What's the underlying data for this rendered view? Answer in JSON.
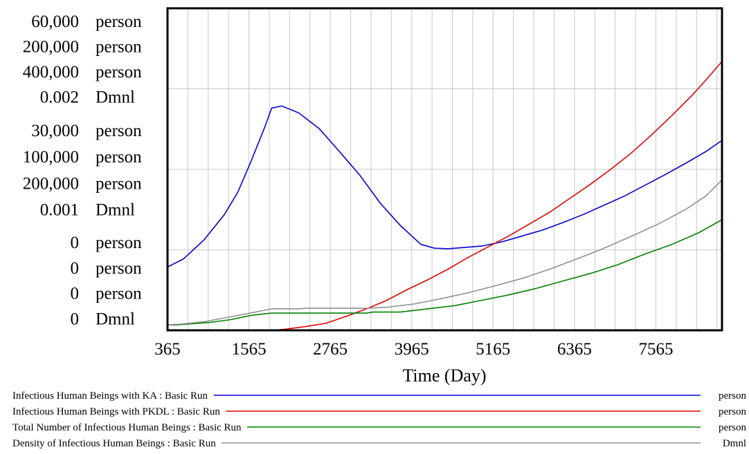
{
  "chart_data": {
    "type": "line",
    "xlabel": "Time (Day)",
    "xlim": [
      365,
      8540
    ],
    "xticks": [
      "365",
      "1565",
      "2765",
      "3965",
      "5165",
      "6365",
      "7565"
    ],
    "grid": true,
    "yaxis_groups": [
      [
        {
          "value": "60,000",
          "unit": "person"
        },
        {
          "value": "200,000",
          "unit": "person"
        },
        {
          "value": "400,000",
          "unit": "person"
        },
        {
          "value": "0.002",
          "unit": "Dmnl"
        }
      ],
      [
        {
          "value": "30,000",
          "unit": "person"
        },
        {
          "value": "100,000",
          "unit": "person"
        },
        {
          "value": "200,000",
          "unit": "person"
        },
        {
          "value": "0.001",
          "unit": "Dmnl"
        }
      ],
      [
        {
          "value": "0",
          "unit": "person"
        },
        {
          "value": "0",
          "unit": "person"
        },
        {
          "value": "0",
          "unit": "person"
        },
        {
          "value": "0",
          "unit": "Dmnl"
        }
      ]
    ],
    "series": [
      {
        "name": "Infectious Human Beings with KA : Basic Run",
        "unit": "person",
        "color": "#0000d0",
        "ymax": 60000,
        "points": [
          [
            365,
            11800
          ],
          [
            600,
            13300
          ],
          [
            900,
            16800
          ],
          [
            1200,
            21500
          ],
          [
            1400,
            25700
          ],
          [
            1600,
            31600
          ],
          [
            1800,
            37900
          ],
          [
            1900,
            41400
          ],
          [
            2050,
            41800
          ],
          [
            2300,
            40500
          ],
          [
            2600,
            37600
          ],
          [
            2900,
            33300
          ],
          [
            3200,
            28900
          ],
          [
            3500,
            23700
          ],
          [
            3800,
            19500
          ],
          [
            4100,
            16000
          ],
          [
            4300,
            15300
          ],
          [
            4500,
            15200
          ],
          [
            4700,
            15400
          ],
          [
            5000,
            15700
          ],
          [
            5300,
            16500
          ],
          [
            5600,
            17600
          ],
          [
            5900,
            18700
          ],
          [
            6200,
            20100
          ],
          [
            6500,
            21600
          ],
          [
            6800,
            23300
          ],
          [
            7100,
            25000
          ],
          [
            7400,
            27000
          ],
          [
            7700,
            29000
          ],
          [
            8000,
            31100
          ],
          [
            8300,
            33300
          ],
          [
            8540,
            35400
          ]
        ]
      },
      {
        "name": "Infectious Human Beings with PKDL : Basic Run",
        "unit": "person",
        "color": "#e00000",
        "ymax": 200000,
        "points": [
          [
            365,
            0
          ],
          [
            1900,
            0
          ],
          [
            2100,
            667
          ],
          [
            2400,
            2333
          ],
          [
            2700,
            4333
          ],
          [
            3000,
            8667
          ],
          [
            3300,
            13333
          ],
          [
            3600,
            18667
          ],
          [
            3900,
            25333
          ],
          [
            4200,
            31333
          ],
          [
            4500,
            38000
          ],
          [
            4800,
            45333
          ],
          [
            5100,
            52000
          ],
          [
            5400,
            58667
          ],
          [
            5700,
            66000
          ],
          [
            6000,
            73333
          ],
          [
            6300,
            82000
          ],
          [
            6600,
            90667
          ],
          [
            6900,
            100000
          ],
          [
            7200,
            110000
          ],
          [
            7500,
            121333
          ],
          [
            7800,
            133333
          ],
          [
            8100,
            146000
          ],
          [
            8300,
            155333
          ],
          [
            8540,
            167000
          ]
        ]
      },
      {
        "name": "Total Number of Infectious Human Beings : Basic Run",
        "unit": "person",
        "color": "#008000",
        "ymax": 400000,
        "points": [
          [
            365,
            6667
          ],
          [
            500,
            6667
          ],
          [
            700,
            8000
          ],
          [
            1000,
            10000
          ],
          [
            1300,
            13333
          ],
          [
            1600,
            18667
          ],
          [
            1900,
            21333
          ],
          [
            2000,
            21333
          ],
          [
            3300,
            21333
          ],
          [
            3400,
            22667
          ],
          [
            3800,
            22667
          ],
          [
            4200,
            26667
          ],
          [
            4600,
            30667
          ],
          [
            5000,
            37333
          ],
          [
            5400,
            44000
          ],
          [
            5800,
            52000
          ],
          [
            6200,
            61333
          ],
          [
            6600,
            70667
          ],
          [
            7000,
            81333
          ],
          [
            7400,
            94667
          ],
          [
            7800,
            106667
          ],
          [
            8200,
            121333
          ],
          [
            8540,
            137333
          ]
        ]
      },
      {
        "name": "Density of Infectious Human Beings : Basic Run",
        "unit": "Dmnl",
        "color": "#909090",
        "ymax": 0.002,
        "points": [
          [
            365,
            3.33e-05
          ],
          [
            600,
            4e-05
          ],
          [
            900,
            5.33e-05
          ],
          [
            1200,
            7.67e-05
          ],
          [
            1500,
            0.0001
          ],
          [
            1900,
            0.0001333
          ],
          [
            2100,
            0.0001333
          ],
          [
            2300,
            0.0001333
          ],
          [
            2400,
            0.0001367
          ],
          [
            3300,
            0.0001367
          ],
          [
            3600,
            0.0001433
          ],
          [
            4000,
            0.0001633
          ],
          [
            4400,
            0.0001967
          ],
          [
            4800,
            0.0002333
          ],
          [
            5200,
            0.0002767
          ],
          [
            5600,
            0.0003233
          ],
          [
            6000,
            0.00038
          ],
          [
            6400,
            0.0004433
          ],
          [
            6800,
            0.00051
          ],
          [
            7200,
            0.0005833
          ],
          [
            7600,
            0.00066
          ],
          [
            8000,
            0.00075
          ],
          [
            8300,
            0.0008333
          ],
          [
            8540,
            0.0009333
          ]
        ]
      }
    ]
  }
}
